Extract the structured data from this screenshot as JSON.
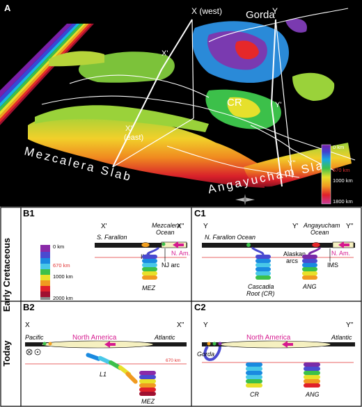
{
  "panelA": {
    "label": "A",
    "labels": {
      "x_west": "X (west)",
      "gorda": "Gorda",
      "y": "Y",
      "x_prime": "X'",
      "cr": "CR",
      "y_prime": "Y'",
      "x_dprime": "X''",
      "east": "(east)",
      "y_dprime": "Y''",
      "mezcalera_slab": "Mezcalera Slab",
      "angayucham_slab": "Angayucham Slab"
    },
    "depth_scale": {
      "top": "0 km",
      "mid": "670 km",
      "lower": "1000 km",
      "bottom": "1800 km"
    }
  },
  "side_labels": {
    "early": "Early Cretaceous",
    "today": "Today"
  },
  "panelB1": {
    "label": "B1",
    "end_left": "X'",
    "end_right": "X''",
    "s_farallon": "S. Farallon",
    "mezcalera_ocean_1": "Mezcalera",
    "mezcalera_ocean_2": "Ocean",
    "n_am": "N. Am.",
    "ins": "INS",
    "nj_arc": "NJ arc",
    "mez": "MEZ",
    "scale": {
      "top": "0 km",
      "mid": "670 km",
      "lower": "1000 km",
      "bottom": "2000 km"
    }
  },
  "panelC1": {
    "label": "C1",
    "end_left": "Y",
    "end_mid": "Y'",
    "end_right": "Y''",
    "n_farallon": "N. Farallon Ocean",
    "angayucham_1": "Angayucham",
    "angayucham_2": "Ocean",
    "alaskan_1": "Alaskan",
    "alaskan_2": "arcs",
    "n_am": "N. Am.",
    "ims": "IMS",
    "cascadia_1": "Cascadia",
    "cascadia_2": "Root (CR)",
    "ang": "ANG"
  },
  "panelB2": {
    "label": "B2",
    "end_left": "X",
    "end_right": "X''",
    "pacific": "Pacific",
    "north_america": "North America",
    "atlantic": "Atlantic",
    "km670": "670 km",
    "l1": "L1",
    "mez": "MEZ"
  },
  "panelC2": {
    "label": "C2",
    "end_left": "Y",
    "end_right": "Y''",
    "north_america": "North America",
    "atlantic": "Atlantic",
    "gorda": "Gorda",
    "cr": "CR",
    "ang": "ANG"
  },
  "colors": {
    "accent_magenta": "#d6198f",
    "red_line": "#e03030",
    "continent": "#f5f0c0"
  }
}
